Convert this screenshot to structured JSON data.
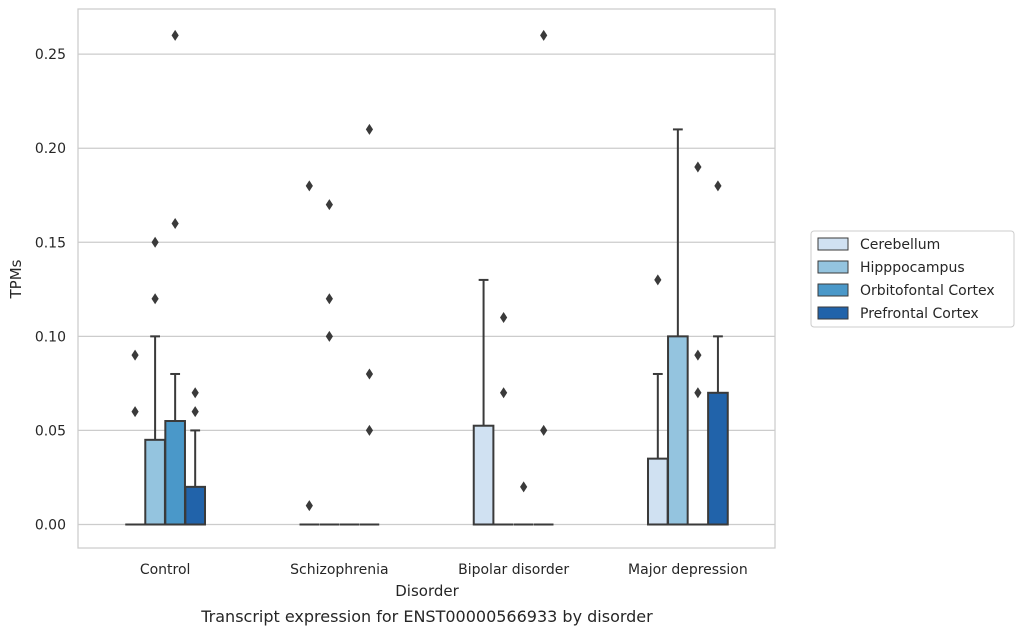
{
  "chart_data": {
    "type": "box",
    "caption": "Transcript expression for ENST00000566933 by disorder",
    "xlabel": "Disorder",
    "ylabel": "TPMs",
    "ylim": [
      -0.0125,
      0.274
    ],
    "yticks": [
      0.0,
      0.05,
      0.1,
      0.15,
      0.2,
      0.25
    ],
    "ytick_labels": [
      "0.00",
      "0.05",
      "0.10",
      "0.15",
      "0.20",
      "0.25"
    ],
    "grid": "horizontal",
    "legend_position": "outside-right",
    "categories": [
      "Control",
      "Schizophrenia",
      "Bipolar disorder",
      "Major depression"
    ],
    "series": [
      {
        "name": "Cerebellum",
        "color": "#d0e1f2",
        "boxes": [
          {
            "q1": 0,
            "median": 0,
            "q3": 0,
            "whisker_low": 0,
            "whisker_high": 0,
            "outliers": [
              0.09,
              0.06
            ]
          },
          {
            "q1": 0,
            "median": 0,
            "q3": 0,
            "whisker_low": 0,
            "whisker_high": 0,
            "outliers": [
              0.18,
              0.01
            ]
          },
          {
            "q1": 0,
            "median": 0,
            "q3": 0.0525,
            "whisker_low": 0,
            "whisker_high": 0.13,
            "outliers": []
          },
          {
            "q1": 0,
            "median": 0,
            "q3": 0.035,
            "whisker_low": 0,
            "whisker_high": 0.08,
            "outliers": [
              0.13
            ]
          }
        ]
      },
      {
        "name": "Hipppocampus",
        "color": "#94c4df",
        "boxes": [
          {
            "q1": 0,
            "median": 0,
            "q3": 0.045,
            "whisker_low": 0,
            "whisker_high": 0.1,
            "outliers": [
              0.15,
              0.12
            ]
          },
          {
            "q1": 0,
            "median": 0,
            "q3": 0,
            "whisker_low": 0,
            "whisker_high": 0,
            "outliers": [
              0.17,
              0.12,
              0.1
            ]
          },
          {
            "q1": 0,
            "median": 0,
            "q3": 0,
            "whisker_low": 0,
            "whisker_high": 0,
            "outliers": [
              0.11,
              0.07
            ]
          },
          {
            "q1": 0,
            "median": 0,
            "q3": 0.1,
            "whisker_low": 0,
            "whisker_high": 0.21,
            "outliers": []
          }
        ]
      },
      {
        "name": "Orbitofontal Cortex",
        "color": "#4a98c9",
        "boxes": [
          {
            "q1": 0,
            "median": 0,
            "q3": 0.055,
            "whisker_low": 0,
            "whisker_high": 0.08,
            "outliers": [
              0.26,
              0.16
            ]
          },
          {
            "q1": 0,
            "median": 0,
            "q3": 0,
            "whisker_low": 0,
            "whisker_high": 0,
            "outliers": []
          },
          {
            "q1": 0,
            "median": 0,
            "q3": 0,
            "whisker_low": 0,
            "whisker_high": 0,
            "outliers": [
              0.02
            ]
          },
          {
            "q1": 0,
            "median": 0,
            "q3": 0,
            "whisker_low": 0,
            "whisker_high": 0,
            "outliers": [
              0.19,
              0.09,
              0.07
            ]
          }
        ]
      },
      {
        "name": "Prefrontal Cortex",
        "color": "#2163aa",
        "boxes": [
          {
            "q1": 0,
            "median": 0,
            "q3": 0.02,
            "whisker_low": 0,
            "whisker_high": 0.05,
            "outliers": [
              0.07,
              0.06
            ]
          },
          {
            "q1": 0,
            "median": 0,
            "q3": 0,
            "whisker_low": 0,
            "whisker_high": 0,
            "outliers": [
              0.21,
              0.08,
              0.05
            ]
          },
          {
            "q1": 0,
            "median": 0,
            "q3": 0,
            "whisker_low": 0,
            "whisker_high": 0,
            "outliers": [
              0.26,
              0.05
            ]
          },
          {
            "q1": 0,
            "median": 0,
            "q3": 0.07,
            "whisker_low": 0,
            "whisker_high": 0.1,
            "outliers": [
              0.18
            ]
          }
        ]
      }
    ]
  }
}
